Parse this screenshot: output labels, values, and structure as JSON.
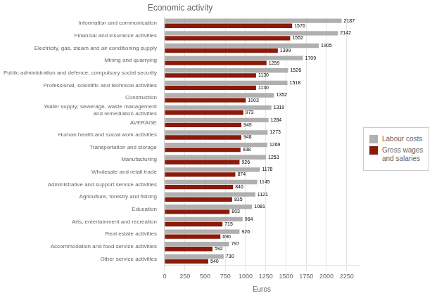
{
  "chart_data": {
    "type": "bar",
    "orientation": "horizontal",
    "title": "Economic activity",
    "xlabel": "Euros",
    "categories": [
      "Information and communication",
      "Financial and insurance activities",
      "Electricity, gas, steam and air conditioning supply",
      "Mining and quarrying",
      "Public administration and defence; compulsory social security",
      "Professional, scientific and technical activities",
      "Construction",
      "Water supply; sewerage, waste management\nand remediation activities",
      "AVERAGE",
      "Human health and social work activities",
      "Transportation and storage",
      "Manufacturing",
      "Wholesale and retail trade",
      "Administrative and support service activities",
      "Agriculture, forestry and fishing",
      "Education",
      "Arts, entertainment and recreation",
      "Real estate activities",
      "Accommodation and food service activities",
      "Other service activities"
    ],
    "series": [
      {
        "name": "Labour costs",
        "color": "#b0b0b0",
        "values": [
          2187,
          2142,
          1905,
          1709,
          1526,
          1518,
          1352,
          1319,
          1284,
          1273,
          1269,
          1253,
          1178,
          1145,
          1121,
          1081,
          964,
          926,
          797,
          730
        ]
      },
      {
        "name": "Gross wages\nand salaries",
        "color": "#8b1a0a",
        "values": [
          1576,
          1552,
          1399,
          1259,
          1130,
          1130,
          1003,
          973,
          949,
          948,
          938,
          926,
          874,
          846,
          835,
          803,
          715,
          690,
          592,
          540
        ]
      }
    ],
    "xlim": [
      0,
      2400
    ],
    "xticks": [
      0,
      250,
      500,
      750,
      1000,
      1250,
      1500,
      1750,
      2000,
      2250
    ],
    "grid": true,
    "legend": "right",
    "data_labels": true
  }
}
